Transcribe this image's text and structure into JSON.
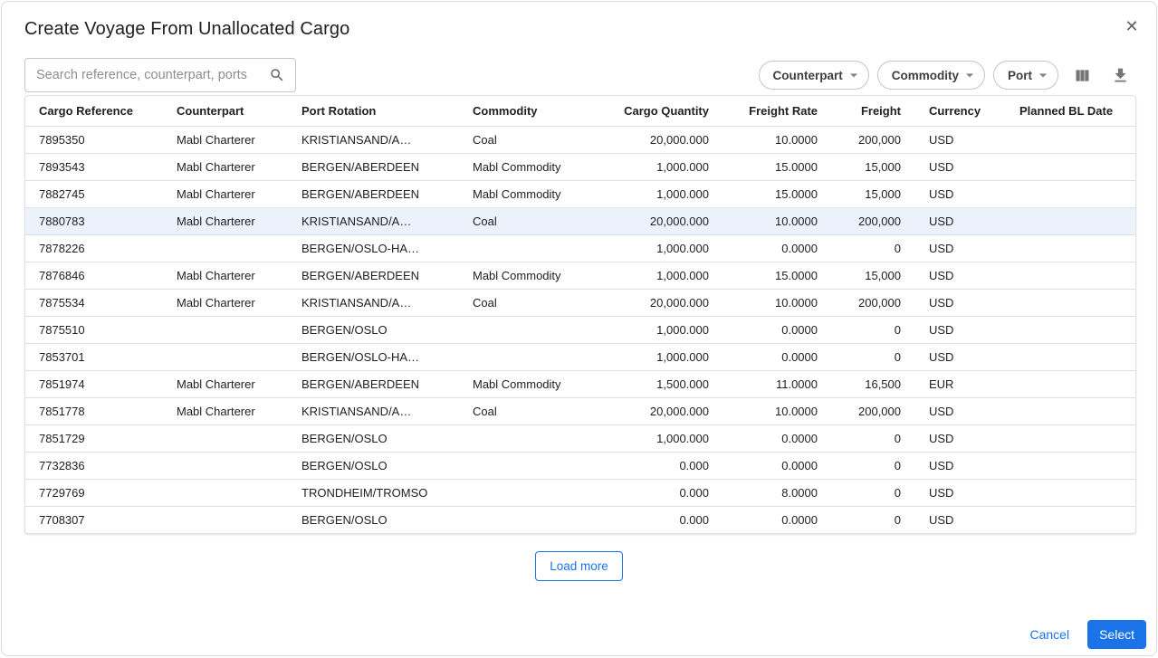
{
  "dialog": {
    "title": "Create Voyage From Unallocated Cargo",
    "close_icon": "✕"
  },
  "toolbar": {
    "search": {
      "placeholder": "Search reference, counterpart, ports",
      "value": ""
    },
    "filters": [
      {
        "label": "Counterpart"
      },
      {
        "label": "Commodity"
      },
      {
        "label": "Port"
      }
    ]
  },
  "table": {
    "columns": [
      {
        "key": "cargo_reference",
        "label": "Cargo Reference",
        "align": "left"
      },
      {
        "key": "counterpart",
        "label": "Counterpart",
        "align": "left"
      },
      {
        "key": "port_rotation",
        "label": "Port Rotation",
        "align": "left"
      },
      {
        "key": "commodity",
        "label": "Commodity",
        "align": "left"
      },
      {
        "key": "cargo_quantity",
        "label": "Cargo Quantity",
        "align": "right"
      },
      {
        "key": "freight_rate",
        "label": "Freight Rate",
        "align": "right"
      },
      {
        "key": "freight",
        "label": "Freight",
        "align": "right"
      },
      {
        "key": "currency",
        "label": "Currency",
        "align": "left"
      },
      {
        "key": "planned_bl_date",
        "label": "Planned BL Date",
        "align": "left"
      }
    ],
    "rows": [
      {
        "cells": [
          "7895350",
          "Mabl Charterer",
          "KRISTIANSAND/A…",
          "Coal",
          "20,000.000",
          "10.0000",
          "200,000",
          "USD",
          ""
        ],
        "highlighted": false
      },
      {
        "cells": [
          "7893543",
          "Mabl Charterer",
          "BERGEN/ABERDEEN",
          "Mabl Commodity",
          "1,000.000",
          "15.0000",
          "15,000",
          "USD",
          ""
        ],
        "highlighted": false
      },
      {
        "cells": [
          "7882745",
          "Mabl Charterer",
          "BERGEN/ABERDEEN",
          "Mabl Commodity",
          "1,000.000",
          "15.0000",
          "15,000",
          "USD",
          ""
        ],
        "highlighted": false
      },
      {
        "cells": [
          "7880783",
          "Mabl Charterer",
          "KRISTIANSAND/A…",
          "Coal",
          "20,000.000",
          "10.0000",
          "200,000",
          "USD",
          ""
        ],
        "highlighted": true
      },
      {
        "cells": [
          "7878226",
          "",
          "BERGEN/OSLO-HA…",
          "",
          "1,000.000",
          "0.0000",
          "0",
          "USD",
          ""
        ],
        "highlighted": false
      },
      {
        "cells": [
          "7876846",
          "Mabl Charterer",
          "BERGEN/ABERDEEN",
          "Mabl Commodity",
          "1,000.000",
          "15.0000",
          "15,000",
          "USD",
          ""
        ],
        "highlighted": false
      },
      {
        "cells": [
          "7875534",
          "Mabl Charterer",
          "KRISTIANSAND/A…",
          "Coal",
          "20,000.000",
          "10.0000",
          "200,000",
          "USD",
          ""
        ],
        "highlighted": false
      },
      {
        "cells": [
          "7875510",
          "",
          "BERGEN/OSLO",
          "",
          "1,000.000",
          "0.0000",
          "0",
          "USD",
          ""
        ],
        "highlighted": false
      },
      {
        "cells": [
          "7853701",
          "",
          "BERGEN/OSLO-HA…",
          "",
          "1,000.000",
          "0.0000",
          "0",
          "USD",
          ""
        ],
        "highlighted": false
      },
      {
        "cells": [
          "7851974",
          "Mabl Charterer",
          "BERGEN/ABERDEEN",
          "Mabl Commodity",
          "1,500.000",
          "11.0000",
          "16,500",
          "EUR",
          ""
        ],
        "highlighted": false
      },
      {
        "cells": [
          "7851778",
          "Mabl Charterer",
          "KRISTIANSAND/A…",
          "Coal",
          "20,000.000",
          "10.0000",
          "200,000",
          "USD",
          ""
        ],
        "highlighted": false
      },
      {
        "cells": [
          "7851729",
          "",
          "BERGEN/OSLO",
          "",
          "1,000.000",
          "0.0000",
          "0",
          "USD",
          ""
        ],
        "highlighted": false
      },
      {
        "cells": [
          "7732836",
          "",
          "BERGEN/OSLO",
          "",
          "0.000",
          "0.0000",
          "0",
          "USD",
          ""
        ],
        "highlighted": false
      },
      {
        "cells": [
          "7729769",
          "",
          "TRONDHEIM/TROMSO",
          "",
          "0.000",
          "8.0000",
          "0",
          "USD",
          ""
        ],
        "highlighted": false
      },
      {
        "cells": [
          "7708307",
          "",
          "BERGEN/OSLO",
          "",
          "0.000",
          "0.0000",
          "0",
          "USD",
          ""
        ],
        "highlighted": false
      }
    ],
    "load_more_label": "Load more"
  },
  "footer": {
    "cancel_label": "Cancel",
    "select_label": "Select"
  },
  "colors": {
    "accent": "#1A73E8",
    "row_highlight": "#EBF2FC",
    "table_border": "#E0E0E0",
    "icon_gray": "#5F6368"
  }
}
